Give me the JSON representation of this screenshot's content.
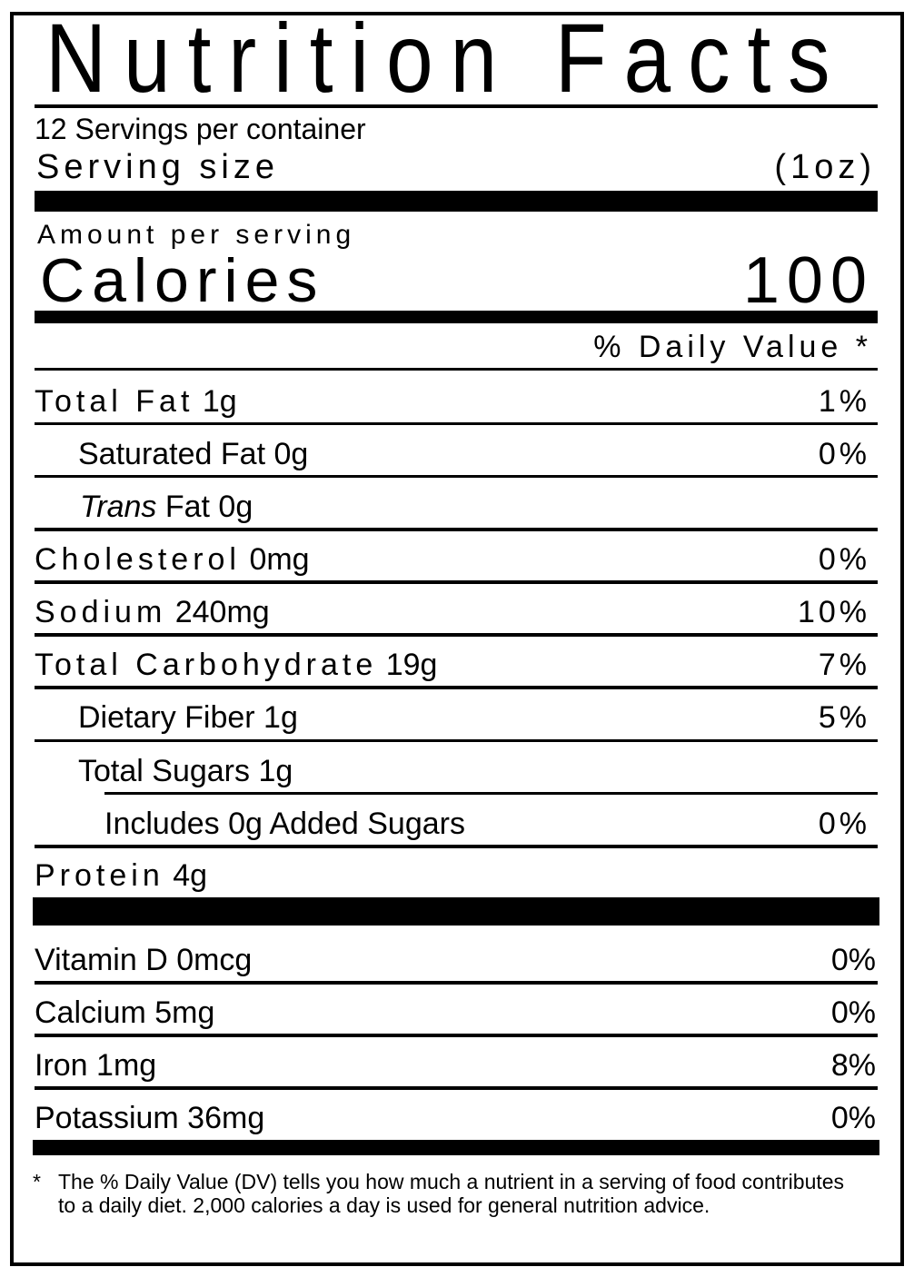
{
  "title": "Nutrition Facts",
  "servings_per_container": "12 Servings per  container",
  "serving_size_label": "Serving size",
  "serving_size_value": "(1oz)",
  "amount_per_serving": "Amount per serving",
  "calories_label": "Calories",
  "calories_value": "100",
  "daily_value_header": "% Daily Value  *",
  "nutrients": [
    {
      "name": "Total Fat",
      "amount": "1g",
      "dv": "1%"
    },
    {
      "name": "Saturated Fat 0g",
      "amount": "",
      "dv": "0%"
    },
    {
      "name": "Trans",
      "amount": " Fat 0g",
      "dv": ""
    },
    {
      "name": "Cholesterol",
      "amount": "0mg",
      "dv": "0%"
    },
    {
      "name": "Sodium",
      "amount": "240mg",
      "dv": "10%"
    },
    {
      "name": "Total Carbohydrate",
      "amount": "19g",
      "dv": "7%"
    },
    {
      "name": "Dietary Fiber 1g",
      "amount": "",
      "dv": "5%"
    },
    {
      "name": "Total Sugars 1g",
      "amount": "",
      "dv": ""
    },
    {
      "name": "Includes 0g Added  Sugars",
      "amount": "",
      "dv": "0%"
    },
    {
      "name": "Protein",
      "amount": "4g",
      "dv": ""
    }
  ],
  "vitamins": [
    {
      "name": "Vitamin D 0mcg",
      "dv": "0%"
    },
    {
      "name": "Calcium 5mg",
      "dv": "0%"
    },
    {
      "name": "Iron 1mg",
      "dv": "8%"
    },
    {
      "name": "Potassium 36mg",
      "dv": "0%"
    }
  ],
  "footnote_mark": "*",
  "footnote": "The % Daily Value (DV) tells you how much a nutrient in a serving of food contributes to a daily diet. 2,000 calories a day is used for general nutrition advice."
}
